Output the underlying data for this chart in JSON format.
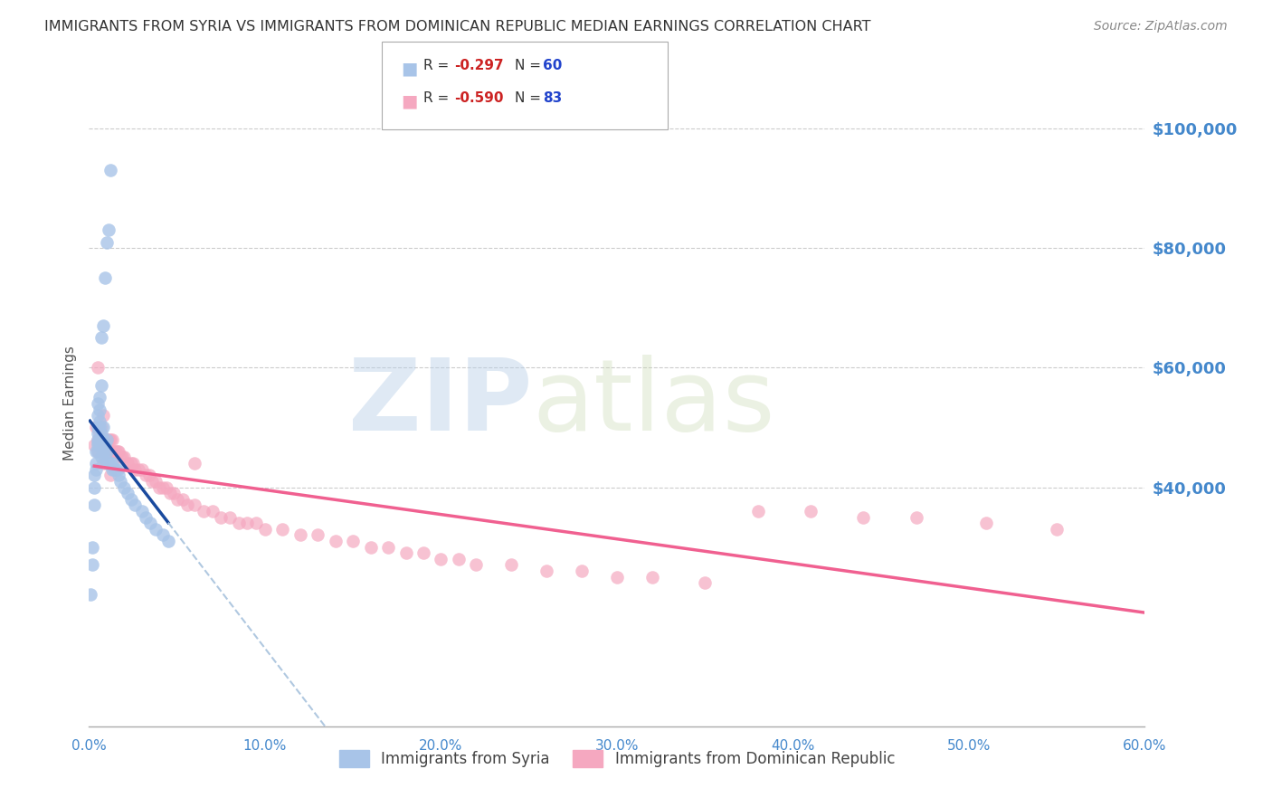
{
  "title": "IMMIGRANTS FROM SYRIA VS IMMIGRANTS FROM DOMINICAN REPUBLIC MEDIAN EARNINGS CORRELATION CHART",
  "source": "Source: ZipAtlas.com",
  "ylabel": "Median Earnings",
  "xlim": [
    0.0,
    0.6
  ],
  "ylim": [
    0,
    108000
  ],
  "xtick_labels": [
    "0.0%",
    "10.0%",
    "20.0%",
    "30.0%",
    "40.0%",
    "50.0%",
    "60.0%"
  ],
  "xtick_values": [
    0.0,
    0.1,
    0.2,
    0.3,
    0.4,
    0.5,
    0.6
  ],
  "ytick_values": [
    40000,
    60000,
    80000,
    100000
  ],
  "ytick_labels": [
    "$40,000",
    "$60,000",
    "$80,000",
    "$100,000"
  ],
  "grid_color": "#cccccc",
  "background_color": "#ffffff",
  "color_syria": "#a8c4e8",
  "color_dr": "#f5a8c0",
  "color_syria_line": "#1a4a9e",
  "color_dr_line": "#f06090",
  "color_dashed": "#b0c8e0",
  "watermark_zip": "ZIP",
  "watermark_atlas": "atlas",
  "label_syria": "Immigrants from Syria",
  "label_dr": "Immigrants from Dominican Republic",
  "axis_color": "#4488cc",
  "title_color": "#333333",
  "title_fontsize": 11.5,
  "syria_x": [
    0.001,
    0.002,
    0.002,
    0.003,
    0.003,
    0.003,
    0.004,
    0.004,
    0.004,
    0.005,
    0.005,
    0.005,
    0.005,
    0.005,
    0.005,
    0.005,
    0.005,
    0.006,
    0.006,
    0.006,
    0.006,
    0.006,
    0.007,
    0.007,
    0.007,
    0.007,
    0.007,
    0.008,
    0.008,
    0.008,
    0.008,
    0.009,
    0.009,
    0.009,
    0.01,
    0.01,
    0.01,
    0.01,
    0.011,
    0.011,
    0.012,
    0.012,
    0.013,
    0.013,
    0.014,
    0.015,
    0.016,
    0.017,
    0.018,
    0.02,
    0.022,
    0.024,
    0.026,
    0.03,
    0.032,
    0.035,
    0.038,
    0.042,
    0.045
  ],
  "syria_y": [
    22000,
    27000,
    30000,
    37000,
    40000,
    42000,
    43000,
    44000,
    46000,
    46000,
    47000,
    47500,
    48000,
    49000,
    50000,
    52000,
    54000,
    48000,
    50000,
    51000,
    53000,
    55000,
    45000,
    47000,
    49000,
    57000,
    65000,
    46000,
    48000,
    50000,
    67000,
    45000,
    47000,
    75000,
    44000,
    46000,
    48000,
    81000,
    44000,
    83000,
    44000,
    93000,
    43000,
    44000,
    43000,
    43000,
    43000,
    42000,
    41000,
    40000,
    39000,
    38000,
    37000,
    36000,
    35000,
    34000,
    33000,
    32000,
    31000
  ],
  "dr_x": [
    0.003,
    0.004,
    0.005,
    0.005,
    0.005,
    0.006,
    0.006,
    0.007,
    0.007,
    0.008,
    0.008,
    0.008,
    0.009,
    0.009,
    0.01,
    0.01,
    0.011,
    0.011,
    0.012,
    0.012,
    0.013,
    0.013,
    0.014,
    0.015,
    0.016,
    0.017,
    0.018,
    0.019,
    0.02,
    0.022,
    0.024,
    0.026,
    0.028,
    0.03,
    0.032,
    0.034,
    0.036,
    0.038,
    0.04,
    0.042,
    0.044,
    0.046,
    0.048,
    0.05,
    0.053,
    0.056,
    0.06,
    0.065,
    0.07,
    0.075,
    0.08,
    0.085,
    0.09,
    0.095,
    0.1,
    0.11,
    0.12,
    0.13,
    0.14,
    0.15,
    0.16,
    0.17,
    0.18,
    0.19,
    0.2,
    0.21,
    0.22,
    0.24,
    0.26,
    0.28,
    0.3,
    0.32,
    0.35,
    0.38,
    0.41,
    0.44,
    0.47,
    0.51,
    0.55,
    0.06,
    0.008,
    0.012,
    0.025
  ],
  "dr_y": [
    47000,
    50000,
    46000,
    48000,
    60000,
    47000,
    49000,
    48000,
    50000,
    46000,
    48000,
    52000,
    46000,
    48000,
    46000,
    48000,
    46000,
    48000,
    46000,
    48000,
    46000,
    48000,
    46000,
    46000,
    46000,
    46000,
    45000,
    45000,
    45000,
    44000,
    44000,
    43000,
    43000,
    43000,
    42000,
    42000,
    41000,
    41000,
    40000,
    40000,
    40000,
    39000,
    39000,
    38000,
    38000,
    37000,
    37000,
    36000,
    36000,
    35000,
    35000,
    34000,
    34000,
    34000,
    33000,
    33000,
    32000,
    32000,
    31000,
    31000,
    30000,
    30000,
    29000,
    29000,
    28000,
    28000,
    27000,
    27000,
    26000,
    26000,
    25000,
    25000,
    24000,
    36000,
    36000,
    35000,
    35000,
    34000,
    33000,
    44000,
    44000,
    42000,
    44000
  ]
}
